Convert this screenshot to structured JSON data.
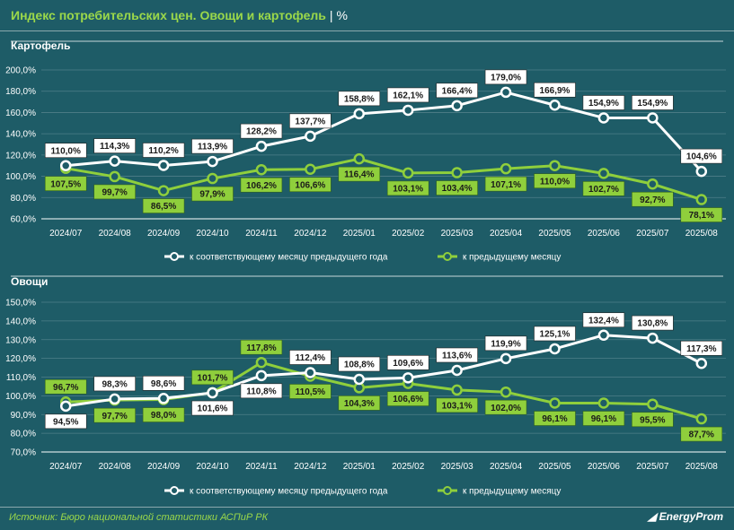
{
  "header": {
    "title": "Индекс потребительских цен. Овощи и картофель",
    "separator": "|",
    "unit": "%"
  },
  "footer": {
    "source": "Источник: Бюро национальной статистики АСПиР РК",
    "logo": "EnergyProm"
  },
  "colors": {
    "background": "#1e5c67",
    "yoy_line": "#ffffff",
    "mom_line": "#8fcf3c",
    "title_accent": "#9bd84a"
  },
  "chart_data": [
    {
      "type": "line",
      "title": "Картофель",
      "categories": [
        "2024/07",
        "2024/08",
        "2024/09",
        "2024/10",
        "2024/11",
        "2024/12",
        "2025/01",
        "2025/02",
        "2025/03",
        "2025/04",
        "2025/05",
        "2025/06",
        "2025/07",
        "2025/08"
      ],
      "ylim": [
        60,
        200
      ],
      "yticks": [
        "60,0%",
        "80,0%",
        "100,0%",
        "120,0%",
        "140,0%",
        "160,0%",
        "180,0%",
        "200,0%"
      ],
      "grid": true,
      "legend": "bottom",
      "series": [
        {
          "name": "к соответствующему месяцу предыдущего года",
          "values": [
            110.0,
            114.3,
            110.2,
            113.9,
            128.2,
            137.7,
            158.8,
            162.1,
            166.4,
            179.0,
            166.9,
            154.9,
            154.9,
            104.6
          ],
          "labels": [
            "110,0%",
            "114,3%",
            "110,2%",
            "113,9%",
            "128,2%",
            "137,7%",
            "158,8%",
            "162,1%",
            "166,4%",
            "179,0%",
            "166,9%",
            "154,9%",
            "154,9%",
            "104,6%"
          ]
        },
        {
          "name": "к предыдущему месяцу",
          "values": [
            107.5,
            99.7,
            86.5,
            97.9,
            106.2,
            106.6,
            116.4,
            103.1,
            103.4,
            107.1,
            110.0,
            102.7,
            92.7,
            78.1
          ],
          "labels": [
            "107,5%",
            "99,7%",
            "86,5%",
            "97,9%",
            "106,2%",
            "106,6%",
            "116,4%",
            "103,1%",
            "103,4%",
            "107,1%",
            "110,0%",
            "102,7%",
            "92,7%",
            "78,1%"
          ]
        }
      ]
    },
    {
      "type": "line",
      "title": "Овощи",
      "categories": [
        "2024/07",
        "2024/08",
        "2024/09",
        "2024/10",
        "2024/11",
        "2024/12",
        "2025/01",
        "2025/02",
        "2025/03",
        "2025/04",
        "2025/05",
        "2025/06",
        "2025/07",
        "2025/08"
      ],
      "ylim": [
        70,
        150
      ],
      "yticks": [
        "70,0%",
        "80,0%",
        "90,0%",
        "100,0%",
        "110,0%",
        "120,0%",
        "130,0%",
        "140,0%",
        "150,0%"
      ],
      "grid": true,
      "legend": "bottom",
      "series": [
        {
          "name": "к соответствующему месяцу предыдущего года",
          "values": [
            94.5,
            98.3,
            98.6,
            101.6,
            110.8,
            112.4,
            108.8,
            109.6,
            113.6,
            119.9,
            125.1,
            132.4,
            130.8,
            117.3
          ],
          "labels": [
            "94,5%",
            "98,3%",
            "98,6%",
            "101,6%",
            "110,8%",
            "112,4%",
            "108,8%",
            "109,6%",
            "113,6%",
            "119,9%",
            "125,1%",
            "132,4%",
            "130,8%",
            "117,3%"
          ]
        },
        {
          "name": "к предыдущему месяцу",
          "values": [
            96.7,
            97.7,
            98.0,
            101.7,
            117.8,
            110.5,
            104.3,
            106.6,
            103.1,
            102.0,
            96.1,
            96.1,
            95.5,
            87.7
          ],
          "labels": [
            "96,7%",
            "97,7%",
            "98,0%",
            "101,7%",
            "117,8%",
            "110,5%",
            "104,3%",
            "106,6%",
            "103,1%",
            "102,0%",
            "96,1%",
            "96,1%",
            "95,5%",
            "87,7%"
          ]
        }
      ]
    }
  ]
}
